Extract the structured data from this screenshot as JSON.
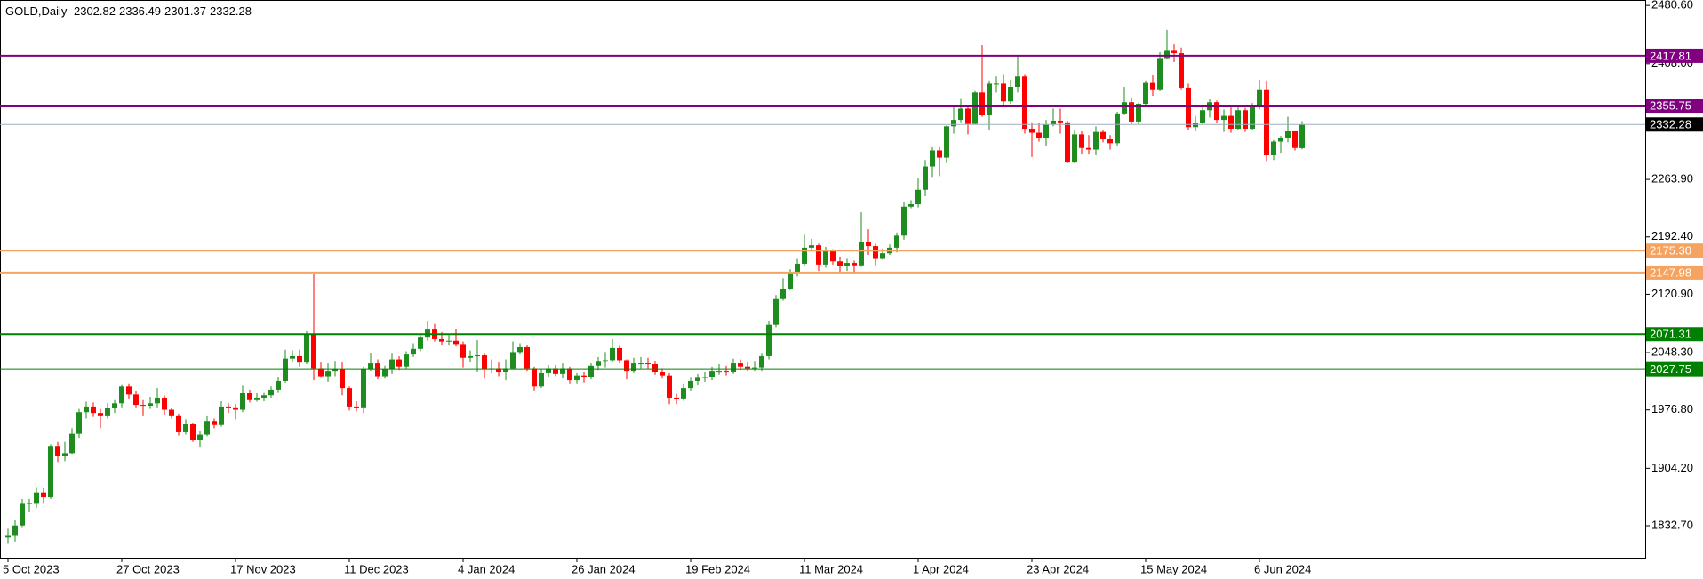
{
  "chart_data": {
    "type": "candlestick",
    "title": "GOLD,Daily",
    "categories": [
      "5 Oct 2023",
      null,
      null,
      null,
      null,
      null,
      null,
      null,
      null,
      null,
      null,
      null,
      null,
      null,
      null,
      null,
      "27 Oct 2023",
      null,
      null,
      null,
      null,
      null,
      null,
      null,
      null,
      null,
      null,
      null,
      null,
      null,
      null,
      null,
      "17 Nov 2023",
      null,
      null,
      null,
      null,
      null,
      null,
      null,
      null,
      null,
      null,
      null,
      null,
      null,
      null,
      null,
      "11 Dec 2023",
      null,
      null,
      null,
      null,
      null,
      null,
      null,
      null,
      null,
      null,
      null,
      null,
      null,
      null,
      null,
      "4 Jan 2024",
      null,
      null,
      null,
      null,
      null,
      null,
      null,
      null,
      null,
      null,
      null,
      null,
      null,
      null,
      null,
      "26 Jan 2024",
      null,
      null,
      null,
      null,
      null,
      null,
      null,
      null,
      null,
      null,
      null,
      null,
      null,
      null,
      null,
      "19 Feb 2024",
      null,
      null,
      null,
      null,
      null,
      null,
      null,
      null,
      null,
      null,
      null,
      null,
      null,
      null,
      null,
      "11 Mar 2024",
      null,
      null,
      null,
      null,
      null,
      null,
      null,
      null,
      null,
      null,
      null,
      null,
      null,
      null,
      null,
      "1 Apr 2024",
      null,
      null,
      null,
      null,
      null,
      null,
      null,
      null,
      null,
      null,
      null,
      null,
      null,
      null,
      null,
      "23 Apr 2024",
      null,
      null,
      null,
      null,
      null,
      null,
      null,
      null,
      null,
      null,
      null,
      null,
      null,
      null,
      null,
      "15 May 2024",
      null,
      null,
      null,
      null,
      null,
      null,
      null,
      null,
      null,
      null,
      null,
      null,
      null,
      null,
      null,
      "6 Jun 2024",
      null,
      null,
      null,
      null,
      null,
      null
    ],
    "open": [
      1818,
      1820,
      1833,
      1861,
      1861,
      1874,
      1868,
      1932,
      1920,
      1923,
      1947,
      1974,
      1981,
      1973,
      1970,
      1979,
      1985,
      2006,
      1996,
      1983,
      1982,
      1985,
      1992,
      1977,
      1970,
      1950,
      1959,
      1940,
      1946,
      1963,
      1958,
      1981,
      1980,
      1977,
      1998,
      1990,
      1992,
      1995,
      2002,
      2013,
      2041,
      2044,
      2036,
      2072,
      2029,
      2019,
      2025,
      2028,
      2004,
      1981,
      1980,
      2027,
      2035,
      2019,
      2027,
      2040,
      2031,
      2046,
      2053,
      2067,
      2077,
      2065,
      2062,
      2063,
      2059,
      2042,
      2044,
      2045,
      2027,
      2029,
      2024,
      2029,
      2049,
      2055,
      2029,
      2006,
      2023,
      2029,
      2022,
      2029,
      2014,
      2020,
      2018,
      2032,
      2037,
      2039,
      2054,
      2039,
      2025,
      2035,
      2035,
      2034,
      2024,
      2020,
      1992,
      1991,
      2004,
      2013,
      2017,
      2018,
      2025,
      2025,
      2024,
      2035,
      2031,
      2029,
      2030,
      2044,
      2083,
      2115,
      2128,
      2148,
      2159,
      2179,
      2182,
      2158,
      2175,
      2162,
      2156,
      2160,
      2157,
      2186,
      2181,
      2165,
      2172,
      2179,
      2194,
      2230,
      2233,
      2251,
      2280,
      2300,
      2291,
      2330,
      2338,
      2352,
      2333,
      2372,
      2344,
      2383,
      2383,
      2361,
      2379,
      2392,
      2327,
      2322,
      2316,
      2332,
      2337,
      2335,
      2286,
      2320,
      2303,
      2301,
      2323,
      2314,
      2309,
      2346,
      2360,
      2336,
      2358,
      2385,
      2376,
      2415,
      2425,
      2421,
      2378,
      2329,
      2334,
      2350,
      2360,
      2338,
      2343,
      2327,
      2350,
      2327,
      2355,
      2376,
      2294,
      2311,
      2316,
      2324,
      2302.82
    ],
    "high": [
      1829,
      1840,
      1866,
      1866,
      1881,
      1880,
      1934,
      1937,
      1937,
      1954,
      1978,
      1987,
      1986,
      1978,
      1985,
      1990,
      2009,
      2010,
      2001,
      1990,
      1993,
      2004,
      1995,
      1980,
      1972,
      1965,
      1961,
      1951,
      1970,
      1966,
      1988,
      1985,
      1984,
      2007,
      2002,
      1998,
      1999,
      2006,
      2018,
      2052,
      2051,
      2052,
      2075,
      2146,
      2036,
      2035,
      2037,
      2036,
      2006,
      1988,
      2031,
      2048,
      2040,
      2032,
      2047,
      2044,
      2050,
      2060,
      2070,
      2088,
      2084,
      2074,
      2070,
      2078,
      2062,
      2051,
      2064,
      2048,
      2040,
      2036,
      2040,
      2062,
      2060,
      2058,
      2031,
      2027,
      2033,
      2033,
      2035,
      2031,
      2023,
      2024,
      2035,
      2043,
      2049,
      2065,
      2057,
      2040,
      2042,
      2043,
      2042,
      2038,
      2029,
      2023,
      1997,
      2010,
      2017,
      2022,
      2024,
      2031,
      2034,
      2032,
      2041,
      2040,
      2036,
      2037,
      2047,
      2088,
      2120,
      2141,
      2152,
      2165,
      2195,
      2190,
      2184,
      2180,
      2177,
      2168,
      2165,
      2163,
      2223,
      2202,
      2184,
      2178,
      2183,
      2198,
      2236,
      2238,
      2265,
      2288,
      2305,
      2305,
      2331,
      2354,
      2365,
      2354,
      2375,
      2431,
      2387,
      2392,
      2395,
      2388,
      2417,
      2395,
      2335,
      2334,
      2338,
      2352,
      2352,
      2337,
      2326,
      2324,
      2319,
      2330,
      2326,
      2319,
      2348,
      2379,
      2366,
      2359,
      2387,
      2394,
      2423,
      2450,
      2432,
      2428,
      2383,
      2343,
      2357,
      2364,
      2362,
      2351,
      2355,
      2354,
      2353,
      2359,
      2388,
      2387,
      2313,
      2318,
      2342,
      2325,
      2336.49
    ],
    "low": [
      1810,
      1813,
      1830,
      1850,
      1855,
      1861,
      1866,
      1912,
      1913,
      1922,
      1942,
      1966,
      1968,
      1954,
      1966,
      1973,
      1980,
      1991,
      1980,
      1970,
      1978,
      1980,
      1971,
      1966,
      1945,
      1946,
      1937,
      1931,
      1944,
      1954,
      1956,
      1973,
      1965,
      1974,
      1986,
      1987,
      1988,
      1992,
      1999,
      2011,
      2036,
      2031,
      2034,
      2014,
      2017,
      2012,
      2019,
      1995,
      1976,
      1975,
      1973,
      2025,
      2015,
      2016,
      2022,
      2026,
      2028,
      2043,
      2050,
      2063,
      2062,
      2058,
      2057,
      2056,
      2030,
      2036,
      2024,
      2016,
      2023,
      2019,
      2014,
      2027,
      2046,
      2025,
      2001,
      2004,
      2018,
      2019,
      2016,
      2010,
      2010,
      2011,
      2015,
      2026,
      2030,
      2036,
      2035,
      2015,
      2023,
      2029,
      2028,
      2021,
      2016,
      1984,
      1984,
      1989,
      2001,
      2008,
      2012,
      2014,
      2021,
      2020,
      2022,
      2026,
      2025,
      2025,
      2025,
      2040,
      2080,
      2113,
      2126,
      2143,
      2157,
      2174,
      2150,
      2154,
      2158,
      2146,
      2150,
      2146,
      2155,
      2170,
      2157,
      2164,
      2170,
      2173,
      2189,
      2228,
      2229,
      2243,
      2267,
      2268,
      2285,
      2321,
      2335,
      2320,
      2332,
      2342,
      2326,
      2372,
      2355,
      2358,
      2372,
      2321,
      2292,
      2311,
      2306,
      2330,
      2321,
      2285,
      2284,
      2296,
      2296,
      2295,
      2310,
      2301,
      2306,
      2345,
      2333,
      2332,
      2354,
      2368,
      2374,
      2414,
      2410,
      2376,
      2326,
      2324,
      2333,
      2341,
      2334,
      2323,
      2322,
      2326,
      2323,
      2326,
      2351,
      2287,
      2288,
      2297,
      2310,
      2300,
      2301.37
    ],
    "close": [
      1820,
      1833,
      1861,
      1861,
      1874,
      1868,
      1932,
      1920,
      1923,
      1947,
      1974,
      1981,
      1973,
      1970,
      1979,
      1985,
      2006,
      1996,
      1983,
      1982,
      1985,
      1992,
      1977,
      1970,
      1950,
      1959,
      1940,
      1946,
      1963,
      1958,
      1981,
      1980,
      1977,
      1998,
      1990,
      1992,
      1995,
      2002,
      2013,
      2041,
      2044,
      2036,
      2072,
      2029,
      2019,
      2025,
      2028,
      2004,
      1981,
      1980,
      2027,
      2035,
      2019,
      2027,
      2040,
      2031,
      2046,
      2053,
      2067,
      2077,
      2065,
      2062,
      2063,
      2059,
      2042,
      2044,
      2045,
      2027,
      2029,
      2024,
      2029,
      2049,
      2055,
      2029,
      2006,
      2023,
      2029,
      2022,
      2029,
      2014,
      2020,
      2018,
      2032,
      2037,
      2039,
      2054,
      2039,
      2025,
      2035,
      2035,
      2034,
      2024,
      2020,
      1992,
      1991,
      2004,
      2013,
      2017,
      2018,
      2025,
      2025,
      2024,
      2035,
      2031,
      2029,
      2030,
      2044,
      2083,
      2115,
      2128,
      2148,
      2159,
      2179,
      2182,
      2158,
      2175,
      2162,
      2156,
      2160,
      2157,
      2186,
      2181,
      2165,
      2172,
      2179,
      2194,
      2230,
      2233,
      2251,
      2280,
      2300,
      2291,
      2330,
      2338,
      2352,
      2333,
      2372,
      2344,
      2383,
      2383,
      2361,
      2379,
      2392,
      2327,
      2322,
      2316,
      2332,
      2337,
      2335,
      2286,
      2320,
      2303,
      2301,
      2323,
      2314,
      2309,
      2346,
      2360,
      2336,
      2358,
      2385,
      2376,
      2415,
      2425,
      2421,
      2378,
      2329,
      2334,
      2350,
      2360,
      2338,
      2343,
      2327,
      2350,
      2327,
      2355,
      2376,
      2294,
      2311,
      2316,
      2324,
      2303,
      2332.28
    ],
    "up_color": "#1e8c1e",
    "down_color": "#ff0000",
    "ylim": [
      1792.9,
      2487.4
    ],
    "yticks": [
      {
        "value": 2480.6,
        "label": "2480.60"
      },
      {
        "value": 2408,
        "label": "2408.00"
      },
      {
        "value": 2263.9,
        "label": "2263.90"
      },
      {
        "value": 2192.4,
        "label": "2192.40"
      },
      {
        "value": 2120.9,
        "label": "2120.90"
      },
      {
        "value": 2048.3,
        "label": "2048.30"
      },
      {
        "value": 1976.8,
        "label": "1976.80"
      },
      {
        "value": 1904.2,
        "label": "1904.20"
      },
      {
        "value": 1832.7,
        "label": "1832.70"
      }
    ],
    "levels": [
      {
        "value": 2417.81,
        "color": "#800080"
      },
      {
        "value": 2355.75,
        "color": "#800080"
      },
      {
        "value": 2175.3,
        "label": "2175.30",
        "color": "#f4a460"
      },
      {
        "value": 2147.98,
        "color": "#f4a460"
      },
      {
        "value": 2071.31,
        "color": "#008000"
      },
      {
        "value": 2027.75,
        "color": "#008000"
      }
    ],
    "price_line_color": "#9fb0c0"
  }
}
